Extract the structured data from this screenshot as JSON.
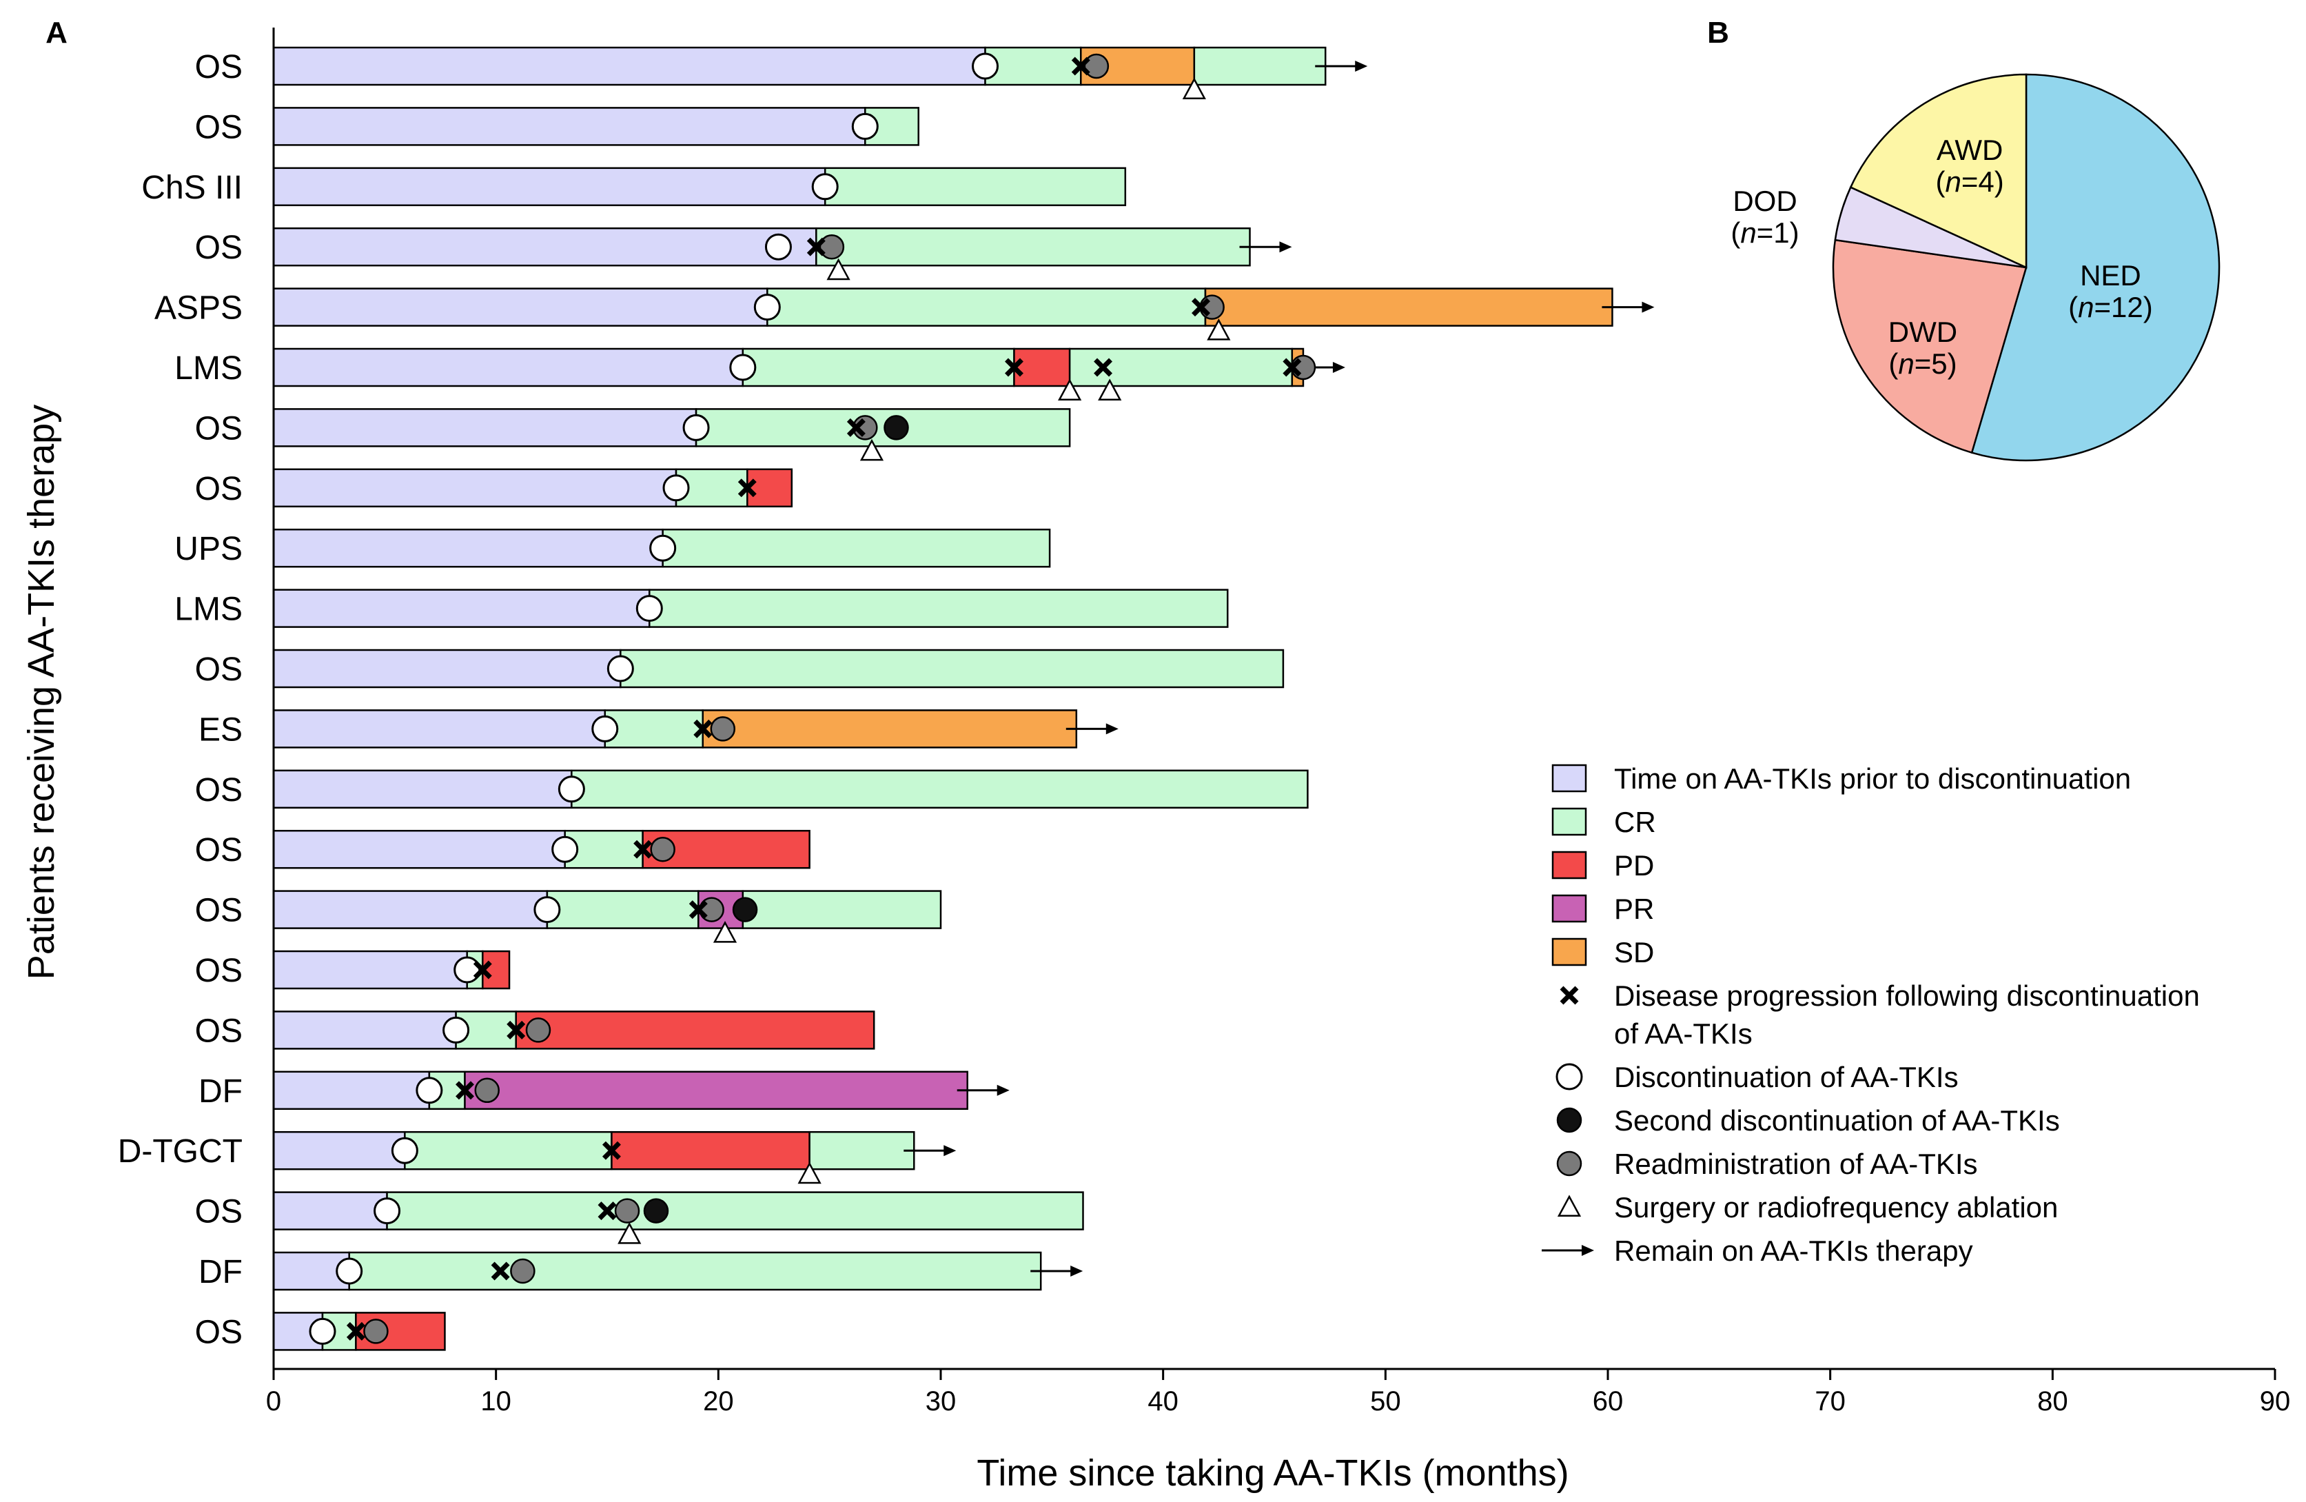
{
  "panel_a_letter": "A",
  "panel_b_letter": "B",
  "colors": {
    "on_tki": "#d8d8fa",
    "CR": "#c6f9d3",
    "PD": "#f34a4a",
    "PR": "#c862b4",
    "SD": "#f8a64d",
    "readmin": "#7a7a7a",
    "second_disc": "#111111",
    "NED": "#92d6ed",
    "DWD": "#f8aba0",
    "DOD": "#e4dcf5",
    "AWD": "#fdf6a6"
  },
  "chart_data": [
    {
      "type": "swimmer",
      "title": "",
      "xlabel": "Time since taking AA-TKIs (months)",
      "ylabel": "Patients receiving AA-TKIs therapy",
      "xlim": [
        0,
        90
      ],
      "xticks": [
        0,
        10,
        20,
        30,
        40,
        50,
        60,
        70,
        80,
        90
      ],
      "legend": {
        "position": "bottom-right",
        "entries": [
          {
            "key": "on_tki",
            "kind": "box",
            "label": "Time on AA-TKIs prior to discontinuation"
          },
          {
            "key": "CR",
            "kind": "box",
            "label": "CR"
          },
          {
            "key": "PD",
            "kind": "box",
            "label": "PD"
          },
          {
            "key": "PR",
            "kind": "box",
            "label": "PR"
          },
          {
            "key": "SD",
            "kind": "box",
            "label": "SD"
          },
          {
            "key": "progression",
            "kind": "cross",
            "label": "Disease progression following discontinuation",
            "label2": "of AA-TKIs"
          },
          {
            "key": "discontinuation",
            "kind": "open-circle",
            "label": "Discontinuation of AA-TKIs"
          },
          {
            "key": "second_disc",
            "kind": "black-circle",
            "label": "Second discontinuation of AA-TKIs"
          },
          {
            "key": "readmin",
            "kind": "gray-circle",
            "label": "Readministration of AA-TKIs"
          },
          {
            "key": "surgery",
            "kind": "triangle",
            "label": "Surgery or radiofrequency ablation"
          },
          {
            "key": "remain",
            "kind": "arrow",
            "label": "Remain on AA-TKIs therapy"
          }
        ]
      },
      "patients": [
        {
          "label": "OS",
          "segments": [
            {
              "s": "on_tki",
              "from": 0,
              "to": 32.0
            },
            {
              "s": "CR",
              "from": 32.0,
              "to": 36.3
            },
            {
              "s": "SD",
              "from": 36.3,
              "to": 41.4
            },
            {
              "s": "CR",
              "from": 41.4,
              "to": 47.3
            }
          ],
          "disc": [
            32.0
          ],
          "cross": [
            36.3
          ],
          "readmin": [
            37.0
          ],
          "second": [],
          "surgery": [
            41.4
          ],
          "arrow": true
        },
        {
          "label": "OS",
          "segments": [
            {
              "s": "on_tki",
              "from": 0,
              "to": 26.6
            },
            {
              "s": "CR",
              "from": 26.6,
              "to": 29.0
            }
          ],
          "disc": [
            26.6
          ],
          "cross": [],
          "readmin": [],
          "second": [],
          "surgery": [],
          "arrow": false
        },
        {
          "label": "ChS III",
          "segments": [
            {
              "s": "on_tki",
              "from": 0,
              "to": 24.8
            },
            {
              "s": "CR",
              "from": 24.8,
              "to": 38.3
            }
          ],
          "disc": [
            24.8
          ],
          "cross": [],
          "readmin": [],
          "second": [],
          "surgery": [],
          "arrow": false
        },
        {
          "label": "OS",
          "segments": [
            {
              "s": "on_tki",
              "from": 0,
              "to": 24.4
            },
            {
              "s": "CR",
              "from": 24.4,
              "to": 43.9
            }
          ],
          "disc": [
            22.7
          ],
          "cross": [
            24.4
          ],
          "readmin": [
            25.1
          ],
          "second": [],
          "surgery": [
            25.4
          ],
          "arrow": true
        },
        {
          "label": "ASPS",
          "segments": [
            {
              "s": "on_tki",
              "from": 0,
              "to": 22.2
            },
            {
              "s": "CR",
              "from": 22.2,
              "to": 41.9
            },
            {
              "s": "SD",
              "from": 41.9,
              "to": 60.2
            }
          ],
          "disc": [
            22.2
          ],
          "cross": [
            41.7
          ],
          "readmin": [
            42.2
          ],
          "second": [],
          "surgery": [
            42.5
          ],
          "arrow": true
        },
        {
          "label": "LMS",
          "segments": [
            {
              "s": "on_tki",
              "from": 0,
              "to": 21.1
            },
            {
              "s": "CR",
              "from": 21.1,
              "to": 33.3
            },
            {
              "s": "PD",
              "from": 33.3,
              "to": 35.8
            },
            {
              "s": "CR",
              "from": 35.8,
              "to": 45.8
            },
            {
              "s": "SD",
              "from": 45.8,
              "to": 46.3
            }
          ],
          "disc": [
            21.1
          ],
          "cross": [
            33.3,
            37.3,
            45.8
          ],
          "readmin": [
            46.3
          ],
          "second": [],
          "surgery": [
            35.8,
            37.6
          ],
          "arrow": true
        },
        {
          "label": "OS",
          "segments": [
            {
              "s": "on_tki",
              "from": 0,
              "to": 19.0
            },
            {
              "s": "CR",
              "from": 19.0,
              "to": 35.8
            }
          ],
          "disc": [
            19.0
          ],
          "cross": [
            26.2
          ],
          "readmin": [
            26.6
          ],
          "second": [
            28.0
          ],
          "surgery": [
            26.9
          ],
          "arrow": false
        },
        {
          "label": "OS",
          "segments": [
            {
              "s": "on_tki",
              "from": 0,
              "to": 18.1
            },
            {
              "s": "CR",
              "from": 18.1,
              "to": 21.3
            },
            {
              "s": "PD",
              "from": 21.3,
              "to": 23.3
            }
          ],
          "disc": [
            18.1
          ],
          "cross": [
            21.3
          ],
          "readmin": [],
          "second": [],
          "surgery": [],
          "arrow": false
        },
        {
          "label": "UPS",
          "segments": [
            {
              "s": "on_tki",
              "from": 0,
              "to": 17.5
            },
            {
              "s": "CR",
              "from": 17.5,
              "to": 34.9
            }
          ],
          "disc": [
            17.5
          ],
          "cross": [],
          "readmin": [],
          "second": [],
          "surgery": [],
          "arrow": false
        },
        {
          "label": "LMS",
          "segments": [
            {
              "s": "on_tki",
              "from": 0,
              "to": 16.9
            },
            {
              "s": "CR",
              "from": 16.9,
              "to": 42.9
            }
          ],
          "disc": [
            16.9
          ],
          "cross": [],
          "readmin": [],
          "second": [],
          "surgery": [],
          "arrow": false
        },
        {
          "label": "OS",
          "segments": [
            {
              "s": "on_tki",
              "from": 0,
              "to": 15.6
            },
            {
              "s": "CR",
              "from": 15.6,
              "to": 45.4
            }
          ],
          "disc": [
            15.6
          ],
          "cross": [],
          "readmin": [],
          "second": [],
          "surgery": [],
          "arrow": false
        },
        {
          "label": "ES",
          "segments": [
            {
              "s": "on_tki",
              "from": 0,
              "to": 14.9
            },
            {
              "s": "CR",
              "from": 14.9,
              "to": 19.3
            },
            {
              "s": "SD",
              "from": 19.3,
              "to": 36.1
            }
          ],
          "disc": [
            14.9
          ],
          "cross": [
            19.3
          ],
          "readmin": [
            20.2
          ],
          "second": [],
          "surgery": [],
          "arrow": true
        },
        {
          "label": "OS",
          "segments": [
            {
              "s": "on_tki",
              "from": 0,
              "to": 13.4
            },
            {
              "s": "CR",
              "from": 13.4,
              "to": 46.5
            }
          ],
          "disc": [
            13.4
          ],
          "cross": [],
          "readmin": [],
          "second": [],
          "surgery": [],
          "arrow": false
        },
        {
          "label": "OS",
          "segments": [
            {
              "s": "on_tki",
              "from": 0,
              "to": 13.1
            },
            {
              "s": "CR",
              "from": 13.1,
              "to": 16.6
            },
            {
              "s": "PD",
              "from": 16.6,
              "to": 24.1
            }
          ],
          "disc": [
            13.1
          ],
          "cross": [
            16.6
          ],
          "readmin": [
            17.5
          ],
          "second": [],
          "surgery": [],
          "arrow": false
        },
        {
          "label": "OS",
          "segments": [
            {
              "s": "on_tki",
              "from": 0,
              "to": 12.3
            },
            {
              "s": "CR",
              "from": 12.3,
              "to": 19.1
            },
            {
              "s": "PR",
              "from": 19.1,
              "to": 21.1
            },
            {
              "s": "CR",
              "from": 21.1,
              "to": 30.0
            }
          ],
          "disc": [
            12.3
          ],
          "cross": [
            19.1
          ],
          "readmin": [
            19.7
          ],
          "second": [
            21.2
          ],
          "surgery": [
            20.3
          ],
          "arrow": false
        },
        {
          "label": "OS",
          "segments": [
            {
              "s": "on_tki",
              "from": 0,
              "to": 8.7
            },
            {
              "s": "CR",
              "from": 8.7,
              "to": 9.4
            },
            {
              "s": "PD",
              "from": 9.4,
              "to": 10.6
            }
          ],
          "disc": [
            8.7
          ],
          "cross": [
            9.4
          ],
          "readmin": [],
          "second": [],
          "surgery": [],
          "arrow": false
        },
        {
          "label": "OS",
          "segments": [
            {
              "s": "on_tki",
              "from": 0,
              "to": 8.2
            },
            {
              "s": "CR",
              "from": 8.2,
              "to": 10.9
            },
            {
              "s": "PD",
              "from": 10.9,
              "to": 27.0
            }
          ],
          "disc": [
            8.2
          ],
          "cross": [
            10.9
          ],
          "readmin": [
            11.9
          ],
          "second": [],
          "surgery": [],
          "arrow": false
        },
        {
          "label": "DF",
          "segments": [
            {
              "s": "on_tki",
              "from": 0,
              "to": 7.0
            },
            {
              "s": "CR",
              "from": 7.0,
              "to": 8.6
            },
            {
              "s": "PR",
              "from": 8.6,
              "to": 31.2
            }
          ],
          "disc": [
            7.0
          ],
          "cross": [
            8.6
          ],
          "readmin": [
            9.6
          ],
          "second": [],
          "surgery": [],
          "arrow": true
        },
        {
          "label": "D-TGCT",
          "segments": [
            {
              "s": "on_tki",
              "from": 0,
              "to": 5.9
            },
            {
              "s": "CR",
              "from": 5.9,
              "to": 15.2
            },
            {
              "s": "PD",
              "from": 15.2,
              "to": 24.1
            },
            {
              "s": "CR",
              "from": 24.1,
              "to": 28.8
            }
          ],
          "disc": [
            5.9
          ],
          "cross": [
            15.2
          ],
          "readmin": [],
          "second": [],
          "surgery": [
            24.1
          ],
          "arrow": true
        },
        {
          "label": "OS",
          "segments": [
            {
              "s": "on_tki",
              "from": 0,
              "to": 5.1
            },
            {
              "s": "CR",
              "from": 5.1,
              "to": 36.4
            }
          ],
          "disc": [
            5.1
          ],
          "cross": [
            15.0
          ],
          "readmin": [
            15.9
          ],
          "second": [
            17.2
          ],
          "surgery": [
            16.0
          ],
          "arrow": false
        },
        {
          "label": "DF",
          "segments": [
            {
              "s": "on_tki",
              "from": 0,
              "to": 3.4
            },
            {
              "s": "CR",
              "from": 3.4,
              "to": 34.5
            }
          ],
          "disc": [
            3.4
          ],
          "cross": [
            10.2
          ],
          "readmin": [
            11.2
          ],
          "second": [],
          "surgery": [],
          "arrow": true
        },
        {
          "label": "OS",
          "segments": [
            {
              "s": "on_tki",
              "from": 0,
              "to": 2.2
            },
            {
              "s": "CR",
              "from": 2.2,
              "to": 3.7
            },
            {
              "s": "PD",
              "from": 3.7,
              "to": 7.7
            }
          ],
          "disc": [
            2.2
          ],
          "cross": [
            3.7
          ],
          "readmin": [
            4.6
          ],
          "second": [],
          "surgery": [],
          "arrow": false
        }
      ]
    },
    {
      "type": "pie",
      "title": "",
      "slices": [
        {
          "key": "NED",
          "label": "NED",
          "n_text": "(n=12)",
          "n_prefix": "(",
          "n_var": "n",
          "n_rest": "=12)",
          "value": 12
        },
        {
          "key": "DWD",
          "label": "DWD",
          "n_text": "(n=5)",
          "n_prefix": "(",
          "n_var": "n",
          "n_rest": "=5)",
          "value": 5
        },
        {
          "key": "DOD",
          "label": "DOD",
          "n_text": "(n=1)",
          "n_prefix": "(",
          "n_var": "n",
          "n_rest": "=1)",
          "value": 1
        },
        {
          "key": "AWD",
          "label": "AWD",
          "n_text": "(n=4)",
          "n_prefix": "(",
          "n_var": "n",
          "n_rest": "=4)",
          "value": 4
        }
      ]
    }
  ]
}
